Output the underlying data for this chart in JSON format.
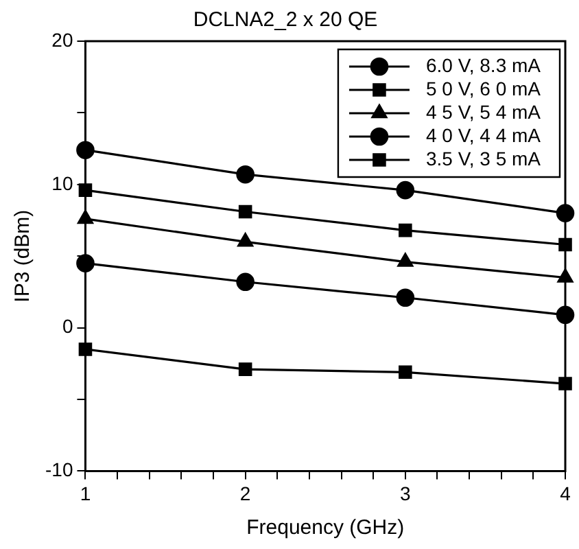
{
  "chart_data": {
    "type": "line",
    "title": "DCLNA2_2 x 20 QE",
    "xlabel": "Frequency (GHz)",
    "ylabel": "IP3 (dBm)",
    "xlim": [
      1,
      4
    ],
    "xticks": [
      1,
      {
        "value": 1.2,
        "label": null
      },
      {
        "value": 1.4,
        "label": null
      },
      {
        "value": 1.6,
        "label": null
      },
      {
        "value": 1.8,
        "label": null
      },
      2,
      {
        "value": 2.2,
        "label": null
      },
      {
        "value": 2.4,
        "label": null
      },
      {
        "value": 2.6,
        "label": null
      },
      {
        "value": 2.8,
        "label": null
      },
      3,
      {
        "value": 3.2,
        "label": null
      },
      {
        "value": 3.4,
        "label": null
      },
      {
        "value": 3.6,
        "label": null
      },
      {
        "value": 3.8,
        "label": null
      },
      4
    ],
    "ylim": [
      -10,
      20
    ],
    "yticks": [
      -10,
      {
        "value": -5,
        "label": null
      },
      0,
      {
        "value": 5,
        "label": null
      },
      10,
      {
        "value": 15,
        "label": null
      },
      20
    ],
    "grid": false,
    "legend": "top right",
    "line_style": "solid",
    "x": [
      1,
      2,
      3,
      4
    ],
    "series": [
      {
        "name": "6.0 V, 8.3 mA",
        "color": "#000000",
        "marker": "circle",
        "values": [
          12.4,
          10.7,
          9.6,
          8.0
        ]
      },
      {
        "name": "5 0 V, 6 0 mA",
        "color": "#000000",
        "marker": "square",
        "values": [
          9.6,
          8.1,
          6.8,
          5.8
        ]
      },
      {
        "name": "4 5 V, 5 4 mA",
        "color": "#000000",
        "marker": "triangle",
        "values": [
          7.6,
          6.0,
          4.6,
          3.5
        ]
      },
      {
        "name": "4 0 V, 4 4 mA",
        "color": "#000000",
        "marker": "circle",
        "values": [
          4.5,
          3.2,
          2.1,
          0.9
        ]
      },
      {
        "name": "3.5 V, 3 5 mA",
        "color": "#000000",
        "marker": "square",
        "values": [
          -1.5,
          -2.9,
          -3.1,
          -3.9
        ]
      }
    ]
  }
}
